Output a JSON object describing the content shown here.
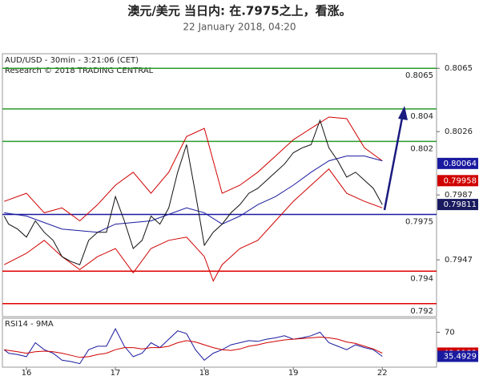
{
  "chart_data": [
    {
      "type": "line",
      "title": "澳元/美元 当日内: 在.7975之上，看涨。",
      "subtitle": "22 January 2018, 04:20",
      "annotations": [
        "AUD/USD - 30min - 3:21:06 (CET)",
        "Research © 2018 TRADING CENTRAL"
      ],
      "xlim": [
        -2.7,
        46.1
      ],
      "ylim": [
        0.7912,
        0.8074
      ],
      "yticks": [
        0.8065,
        0.8026,
        0.7987,
        0.7947
      ],
      "levels": [
        {
          "value": 0.8065,
          "color": "#2a9a2a"
        },
        {
          "value": 0.804,
          "color": "#2a9a2a"
        },
        {
          "value": 0.802,
          "color": "#2a9a2a"
        },
        {
          "value": 0.7975,
          "color": "#1a1aa0"
        },
        {
          "value": 0.794,
          "color": "#e00000"
        },
        {
          "value": 0.792,
          "color": "#e00000"
        }
      ],
      "tags": [
        {
          "value": 0.80064,
          "color": "#1a1aa0"
        },
        {
          "value": 0.79958,
          "color": "#d00000"
        },
        {
          "value": 0.79811,
          "color": "#1a1a60"
        }
      ],
      "series": [
        {
          "color": "#d00000",
          "x": [
            -2.5,
            0,
            2,
            4,
            6,
            8,
            10,
            12,
            14,
            16,
            18,
            20,
            21,
            22,
            24,
            26,
            28,
            30,
            32,
            34,
            36,
            38,
            40
          ],
          "values": [
            0.7983,
            0.7988,
            0.7976,
            0.7979,
            0.7971,
            0.7981,
            0.7993,
            0.8001,
            0.7988,
            0.8001,
            0.8023,
            0.8028,
            0.8008,
            0.7988,
            0.7993,
            0.8001,
            0.8011,
            0.8021,
            0.8028,
            0.8035,
            0.8034,
            0.8016,
            0.8008
          ]
        },
        {
          "color": "#d00000",
          "x": [
            -2.5,
            0,
            2,
            4,
            6,
            8,
            10,
            12,
            14,
            16,
            18,
            20,
            21,
            22,
            24,
            26,
            28,
            30,
            32,
            34,
            36,
            38,
            40
          ],
          "values": [
            0.7944,
            0.7951,
            0.7959,
            0.7949,
            0.7941,
            0.7949,
            0.7954,
            0.7939,
            0.7954,
            0.7959,
            0.7961,
            0.7949,
            0.7934,
            0.7944,
            0.7954,
            0.7959,
            0.7971,
            0.7983,
            0.7993,
            0.8003,
            0.7988,
            0.7983,
            0.7979
          ]
        },
        {
          "color": "#1a1aa0",
          "x": [
            -2.5,
            0,
            4,
            8,
            10,
            14,
            18,
            20,
            22,
            24,
            26,
            28,
            30,
            32,
            34,
            36,
            38,
            40
          ],
          "values": [
            0.7976,
            0.7974,
            0.7966,
            0.7964,
            0.7969,
            0.7971,
            0.7979,
            0.7976,
            0.7969,
            0.7974,
            0.7981,
            0.7986,
            0.7993,
            0.8001,
            0.8008,
            0.8011,
            0.8011,
            0.8008
          ]
        },
        {
          "color": "#111111",
          "x": [
            -2.5,
            -2,
            -1,
            0,
            1,
            2,
            3,
            4,
            5,
            6,
            7,
            8,
            9,
            10,
            11,
            12,
            13,
            14,
            15,
            16,
            17,
            18,
            19,
            20,
            21,
            22,
            23,
            24,
            25,
            26,
            27,
            28,
            29,
            30,
            31,
            32,
            33,
            34,
            35,
            36,
            37,
            38,
            39,
            40
          ],
          "values": [
            0.7974,
            0.7969,
            0.7966,
            0.7961,
            0.7971,
            0.7964,
            0.7959,
            0.7949,
            0.7946,
            0.7944,
            0.7959,
            0.7964,
            0.7964,
            0.7986,
            0.7971,
            0.7954,
            0.7959,
            0.7974,
            0.7969,
            0.7979,
            0.8001,
            0.8018,
            0.7988,
            0.7956,
            0.7964,
            0.7969,
            0.7976,
            0.7981,
            0.7988,
            0.7991,
            0.7996,
            0.8001,
            0.8006,
            0.8013,
            0.8016,
            0.8018,
            0.8033,
            0.8016,
            0.8008,
            0.7998,
            0.8001,
            0.7996,
            0.7991,
            0.7981
          ]
        }
      ]
    },
    {
      "type": "line",
      "title": "RSI14 - 9MA",
      "xlim": [
        -2.7,
        46.1
      ],
      "ylim": [
        20,
        90
      ],
      "yticks": [
        70
      ],
      "xticks": [
        {
          "value": 0,
          "label": "16"
        },
        {
          "value": 10,
          "label": "17"
        },
        {
          "value": 20,
          "label": "18"
        },
        {
          "value": 30,
          "label": "19"
        },
        {
          "value": 40,
          "label": "22"
        }
      ],
      "tags": [
        {
          "value": 40.1183,
          "color": "#d00000"
        },
        {
          "value": 35.4929,
          "color": "#1a1aa0"
        }
      ],
      "series": [
        {
          "color": "#1a1aa0",
          "x": [
            -2.5,
            -2,
            -1,
            0,
            1,
            2,
            3,
            4,
            5,
            6,
            7,
            8,
            9,
            10,
            11,
            12,
            13,
            14,
            15,
            16,
            17,
            18,
            19,
            20,
            21,
            22,
            23,
            24,
            25,
            26,
            27,
            28,
            29,
            30,
            31,
            32,
            33,
            34,
            35,
            36,
            37,
            38,
            39,
            40
          ],
          "values": [
            45,
            40,
            38,
            35,
            55,
            45,
            40,
            30,
            28,
            25,
            45,
            50,
            50,
            75,
            50,
            35,
            40,
            55,
            48,
            60,
            72,
            68,
            45,
            30,
            40,
            45,
            52,
            55,
            58,
            57,
            60,
            62,
            65,
            60,
            62,
            65,
            70,
            55,
            50,
            45,
            52,
            48,
            45,
            35.4929
          ]
        },
        {
          "color": "#d00000",
          "x": [
            -2.5,
            -2,
            -1,
            0,
            1,
            2,
            3,
            4,
            5,
            6,
            7,
            8,
            9,
            10,
            11,
            12,
            13,
            14,
            15,
            16,
            17,
            18,
            19,
            20,
            21,
            22,
            23,
            24,
            25,
            26,
            27,
            28,
            29,
            30,
            31,
            32,
            33,
            34,
            35,
            36,
            37,
            38,
            39,
            40
          ],
          "values": [
            45,
            44,
            42,
            40,
            42,
            43,
            42,
            40,
            37,
            34,
            35,
            38,
            40,
            45,
            48,
            48,
            46,
            48,
            48,
            50,
            55,
            58,
            56,
            52,
            48,
            45,
            44,
            46,
            50,
            52,
            55,
            57,
            59,
            60,
            61,
            62,
            63,
            62,
            60,
            56,
            54,
            50,
            46,
            40.1183
          ]
        }
      ]
    }
  ]
}
